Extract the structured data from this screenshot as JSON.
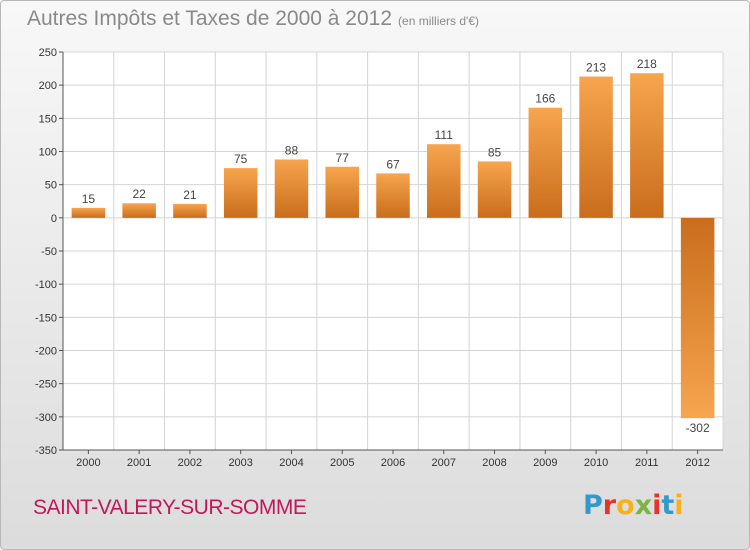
{
  "chart_data": {
    "type": "bar",
    "title": "Autres Impôts et Taxes de 2000 à 2012",
    "subtitle": "(en milliers d'€)",
    "categories": [
      "2000",
      "2001",
      "2002",
      "2003",
      "2004",
      "2005",
      "2006",
      "2007",
      "2008",
      "2009",
      "2010",
      "2011",
      "2012"
    ],
    "values": [
      15,
      22,
      21,
      75,
      88,
      77,
      67,
      111,
      85,
      166,
      213,
      218,
      -302
    ],
    "data_labels": [
      "15",
      "22",
      "21",
      "75",
      "88",
      "77",
      "67",
      "111",
      "85",
      "166",
      "213",
      "218",
      "-302"
    ],
    "ylim": [
      -350,
      250
    ],
    "yticks": [
      250,
      200,
      150,
      100,
      50,
      0,
      -50,
      -100,
      -150,
      -200,
      -250,
      -300,
      -350
    ],
    "ytick_labels": [
      "250",
      "200",
      "150",
      "100",
      "50",
      "0",
      "-50",
      "-100",
      "-150",
      "-200",
      "-250",
      "-300",
      "-350"
    ],
    "grid": true,
    "bar_color_light": "#f7a54e",
    "bar_color_dark": "#c96d1c",
    "xlabel": "",
    "ylabel": ""
  },
  "footer": {
    "city": "SAINT-VALERY-SUR-SOMME",
    "logo_letters": [
      "P",
      "r",
      "o",
      "x",
      "i",
      "t",
      "i"
    ],
    "logo_colors": [
      "#3399cc",
      "#e8332a",
      "#f7b21b",
      "#7cb342",
      "#e8332a",
      "#3399cc",
      "#f7b21b"
    ]
  }
}
